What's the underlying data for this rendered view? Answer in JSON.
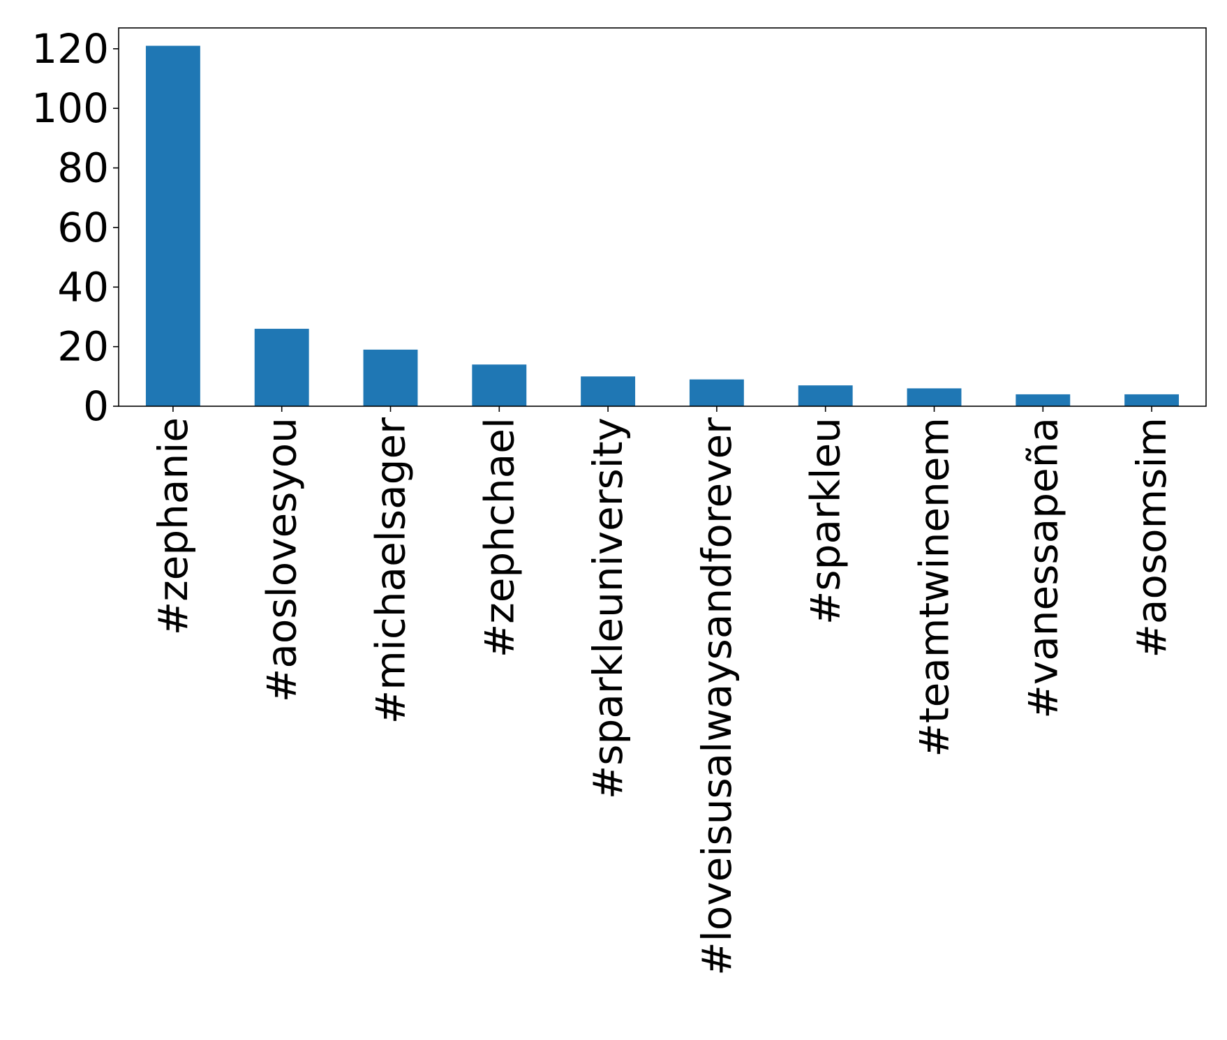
{
  "chart_data": {
    "type": "bar",
    "title": "",
    "xlabel": "",
    "ylabel": "",
    "categories": [
      "#zephanie",
      "#aoslovesyou",
      "#michaelsager",
      "#zephchael",
      "#sparkleuniversity",
      "#loveisusalwaysandforever",
      "#sparkleu",
      "#teamtwinenem",
      "#vanessapeña",
      "#aosomsim"
    ],
    "values": [
      121,
      26,
      19,
      14,
      10,
      9,
      7,
      6,
      4,
      4
    ],
    "ylim": [
      0,
      127
    ],
    "yticks": [
      0,
      20,
      40,
      60,
      80,
      100,
      120
    ],
    "yticklabels": [
      "0",
      "20",
      "40",
      "60",
      "80",
      "100",
      "120"
    ],
    "bar_color": "#1f77b4",
    "grid": false,
    "legend": "none"
  }
}
